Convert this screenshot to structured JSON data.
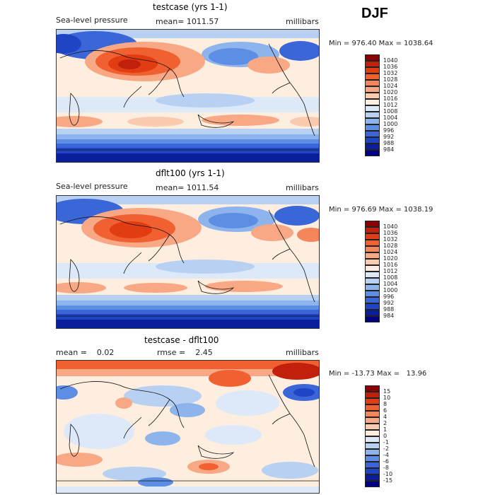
{
  "season": "DJF",
  "panels": [
    {
      "id": "top",
      "title": "testcase (yrs 1-1)",
      "left_label": "Sea-level pressure",
      "center_label": "mean= 1011.57",
      "right_label": "millibars",
      "minmax": "Min = 976.40 Max = 1038.64"
    },
    {
      "id": "middle",
      "title": "dflt100 (yrs 1-1)",
      "left_label": "Sea-level pressure",
      "center_label": "mean= 1011.54",
      "right_label": "millibars",
      "minmax": "Min = 976.69 Max = 1038.19"
    },
    {
      "id": "bottom",
      "title": "testcase - dflt100",
      "left_label": "mean =    0.02",
      "center_label": "rmse =    2.45",
      "right_label": "millibars",
      "minmax": "Min = -13.73 Max =   13.96"
    }
  ],
  "colorbars": {
    "absolute": {
      "labels": [
        "1040",
        "1036",
        "1032",
        "1028",
        "1024",
        "1020",
        "1016",
        "1012",
        "1008",
        "1004",
        "1000",
        "996",
        "992",
        "988",
        "984"
      ],
      "colors": [
        "#8b0000",
        "#c0200c",
        "#e23d12",
        "#f06030",
        "#f5855a",
        "#f8a884",
        "#fbcbb0",
        "#fdeee0",
        "#dde9f8",
        "#b8d0f2",
        "#8db4ec",
        "#5e8ee4",
        "#3a66d8",
        "#1f44c4",
        "#0a1e9c",
        "#000080"
      ]
    },
    "difference": {
      "labels": [
        "15",
        "10",
        "8",
        "6",
        "4",
        "2",
        "1",
        "0",
        "-1",
        "-2",
        "-4",
        "-6",
        "-8",
        "-10",
        "-15"
      ],
      "colors": [
        "#8b0000",
        "#c0200c",
        "#e23d12",
        "#f06030",
        "#f5855a",
        "#f8a884",
        "#fbcbb0",
        "#fdeee0",
        "#dde9f8",
        "#b8d0f2",
        "#8db4ec",
        "#5e8ee4",
        "#3a66d8",
        "#1f44c4",
        "#0a1e9c",
        "#000080"
      ]
    }
  }
}
